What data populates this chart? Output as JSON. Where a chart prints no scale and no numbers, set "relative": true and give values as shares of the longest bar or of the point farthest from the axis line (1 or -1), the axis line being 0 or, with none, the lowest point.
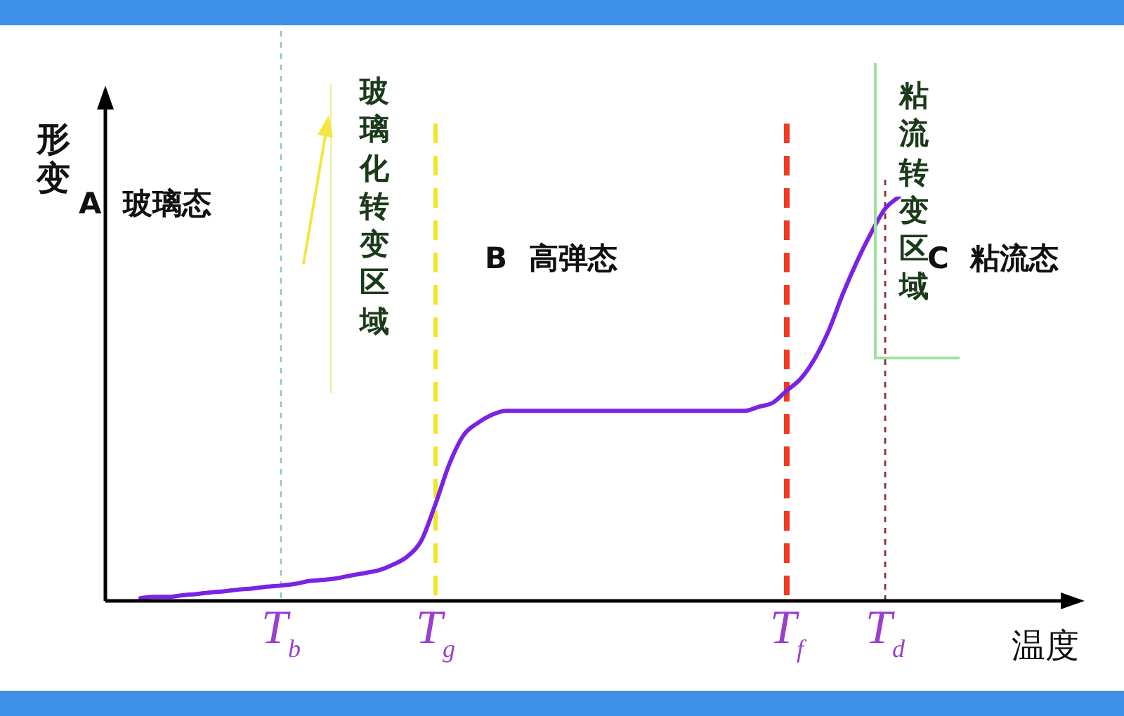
{
  "chart_data": {
    "type": "line",
    "relative": true,
    "xlabel": "温度",
    "ylabel": "形变",
    "marker": "none",
    "line_style": "solid",
    "legend": false,
    "color": "#7a22e6",
    "categories": [
      null,
      null,
      null,
      null,
      null,
      null,
      null,
      null,
      null,
      null,
      "T$_{b}$",
      null,
      null,
      null,
      null,
      null,
      null,
      null,
      null,
      null,
      null,
      "T$_{g}$",
      null,
      null,
      null,
      null,
      null,
      null,
      null,
      null,
      null,
      null,
      null,
      null,
      null,
      null,
      null,
      null,
      null,
      null,
      null,
      null,
      null,
      null,
      null,
      null,
      "T$_{f}$",
      null,
      null,
      null,
      null,
      null,
      null,
      "T$_{d}$",
      null,
      null,
      null,
      null,
      null,
      null,
      null,
      null,
      null,
      null,
      null
    ],
    "values": [
      0.007,
      0.01,
      0.01,
      0.014,
      0.017,
      0.021,
      0.024,
      0.028,
      0.031,
      0.035,
      0.038,
      0.042,
      0.049,
      0.052,
      0.056,
      0.063,
      0.069,
      0.076,
      0.09,
      0.11,
      0.15,
      0.24,
      0.34,
      0.41,
      0.44,
      0.46,
      0.47,
      0.47,
      0.47,
      0.47,
      0.47,
      0.47,
      0.47,
      0.47,
      0.47,
      0.47,
      0.47,
      0.47,
      0.47,
      0.47,
      0.47,
      0.47,
      0.47,
      0.47,
      0.48,
      0.49,
      0.52,
      0.55,
      0.6,
      0.67,
      0.76,
      0.84,
      0.91,
      0.97,
      1,
      null,
      null,
      null,
      null,
      null,
      null,
      null,
      null,
      null,
      null
    ],
    "ref_lines": [
      {
        "axis": "x",
        "value": "T$_{b}$",
        "color": "#7fc4c8",
        "line_style": "dashed"
      },
      {
        "axis": "x",
        "value": "T$_{g}$",
        "color": "#f2e62a",
        "line_style": "dashed"
      },
      {
        "axis": "x",
        "value": "T$_{f}$",
        "color": "#f03a22",
        "line_style": "dashed"
      },
      {
        "axis": "x",
        "value": "T$_{d}$",
        "color": "#8a3a3a",
        "line_style": "dashed"
      }
    ],
    "annotations": [
      "A 玻璃态",
      "玻璃化转变区域",
      "B 高弹态",
      "粘流转变区域",
      "C 粘流态"
    ]
  }
}
